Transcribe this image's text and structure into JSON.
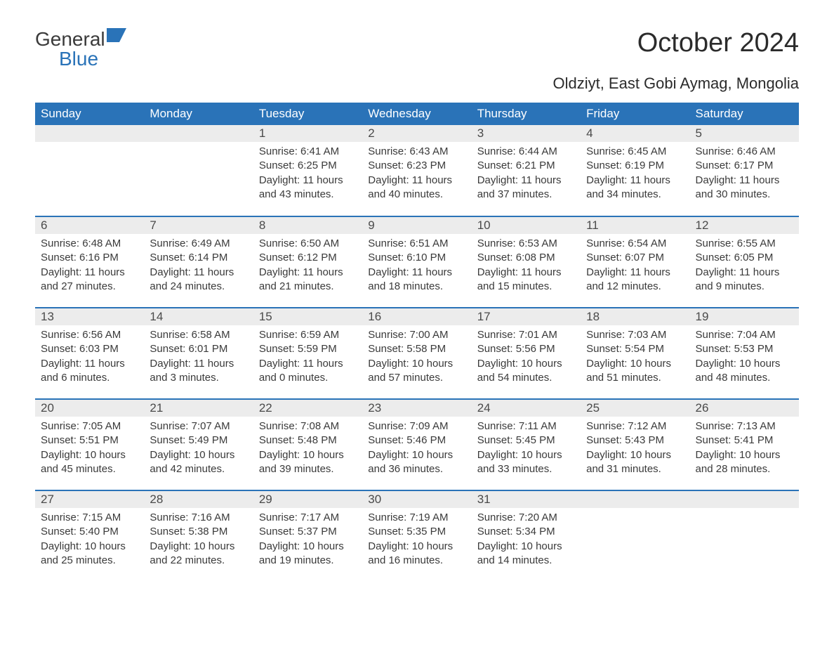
{
  "brand": {
    "part1": "General",
    "part2": "Blue",
    "logo_color": "#2a73b8"
  },
  "title": "October 2024",
  "subtitle": "Oldziyt, East Gobi Aymag, Mongolia",
  "colors": {
    "header_bg": "#2a73b8",
    "header_fg": "#ffffff",
    "daynum_bg": "#ececec",
    "row_border": "#2a73b8",
    "text": "#3a3a3a",
    "background": "#ffffff"
  },
  "day_headers": [
    "Sunday",
    "Monday",
    "Tuesday",
    "Wednesday",
    "Thursday",
    "Friday",
    "Saturday"
  ],
  "weeks": [
    [
      {
        "n": "",
        "sunrise": "",
        "sunset": "",
        "daylight": ""
      },
      {
        "n": "",
        "sunrise": "",
        "sunset": "",
        "daylight": ""
      },
      {
        "n": "1",
        "sunrise": "Sunrise: 6:41 AM",
        "sunset": "Sunset: 6:25 PM",
        "daylight": "Daylight: 11 hours and 43 minutes."
      },
      {
        "n": "2",
        "sunrise": "Sunrise: 6:43 AM",
        "sunset": "Sunset: 6:23 PM",
        "daylight": "Daylight: 11 hours and 40 minutes."
      },
      {
        "n": "3",
        "sunrise": "Sunrise: 6:44 AM",
        "sunset": "Sunset: 6:21 PM",
        "daylight": "Daylight: 11 hours and 37 minutes."
      },
      {
        "n": "4",
        "sunrise": "Sunrise: 6:45 AM",
        "sunset": "Sunset: 6:19 PM",
        "daylight": "Daylight: 11 hours and 34 minutes."
      },
      {
        "n": "5",
        "sunrise": "Sunrise: 6:46 AM",
        "sunset": "Sunset: 6:17 PM",
        "daylight": "Daylight: 11 hours and 30 minutes."
      }
    ],
    [
      {
        "n": "6",
        "sunrise": "Sunrise: 6:48 AM",
        "sunset": "Sunset: 6:16 PM",
        "daylight": "Daylight: 11 hours and 27 minutes."
      },
      {
        "n": "7",
        "sunrise": "Sunrise: 6:49 AM",
        "sunset": "Sunset: 6:14 PM",
        "daylight": "Daylight: 11 hours and 24 minutes."
      },
      {
        "n": "8",
        "sunrise": "Sunrise: 6:50 AM",
        "sunset": "Sunset: 6:12 PM",
        "daylight": "Daylight: 11 hours and 21 minutes."
      },
      {
        "n": "9",
        "sunrise": "Sunrise: 6:51 AM",
        "sunset": "Sunset: 6:10 PM",
        "daylight": "Daylight: 11 hours and 18 minutes."
      },
      {
        "n": "10",
        "sunrise": "Sunrise: 6:53 AM",
        "sunset": "Sunset: 6:08 PM",
        "daylight": "Daylight: 11 hours and 15 minutes."
      },
      {
        "n": "11",
        "sunrise": "Sunrise: 6:54 AM",
        "sunset": "Sunset: 6:07 PM",
        "daylight": "Daylight: 11 hours and 12 minutes."
      },
      {
        "n": "12",
        "sunrise": "Sunrise: 6:55 AM",
        "sunset": "Sunset: 6:05 PM",
        "daylight": "Daylight: 11 hours and 9 minutes."
      }
    ],
    [
      {
        "n": "13",
        "sunrise": "Sunrise: 6:56 AM",
        "sunset": "Sunset: 6:03 PM",
        "daylight": "Daylight: 11 hours and 6 minutes."
      },
      {
        "n": "14",
        "sunrise": "Sunrise: 6:58 AM",
        "sunset": "Sunset: 6:01 PM",
        "daylight": "Daylight: 11 hours and 3 minutes."
      },
      {
        "n": "15",
        "sunrise": "Sunrise: 6:59 AM",
        "sunset": "Sunset: 5:59 PM",
        "daylight": "Daylight: 11 hours and 0 minutes."
      },
      {
        "n": "16",
        "sunrise": "Sunrise: 7:00 AM",
        "sunset": "Sunset: 5:58 PM",
        "daylight": "Daylight: 10 hours and 57 minutes."
      },
      {
        "n": "17",
        "sunrise": "Sunrise: 7:01 AM",
        "sunset": "Sunset: 5:56 PM",
        "daylight": "Daylight: 10 hours and 54 minutes."
      },
      {
        "n": "18",
        "sunrise": "Sunrise: 7:03 AM",
        "sunset": "Sunset: 5:54 PM",
        "daylight": "Daylight: 10 hours and 51 minutes."
      },
      {
        "n": "19",
        "sunrise": "Sunrise: 7:04 AM",
        "sunset": "Sunset: 5:53 PM",
        "daylight": "Daylight: 10 hours and 48 minutes."
      }
    ],
    [
      {
        "n": "20",
        "sunrise": "Sunrise: 7:05 AM",
        "sunset": "Sunset: 5:51 PM",
        "daylight": "Daylight: 10 hours and 45 minutes."
      },
      {
        "n": "21",
        "sunrise": "Sunrise: 7:07 AM",
        "sunset": "Sunset: 5:49 PM",
        "daylight": "Daylight: 10 hours and 42 minutes."
      },
      {
        "n": "22",
        "sunrise": "Sunrise: 7:08 AM",
        "sunset": "Sunset: 5:48 PM",
        "daylight": "Daylight: 10 hours and 39 minutes."
      },
      {
        "n": "23",
        "sunrise": "Sunrise: 7:09 AM",
        "sunset": "Sunset: 5:46 PM",
        "daylight": "Daylight: 10 hours and 36 minutes."
      },
      {
        "n": "24",
        "sunrise": "Sunrise: 7:11 AM",
        "sunset": "Sunset: 5:45 PM",
        "daylight": "Daylight: 10 hours and 33 minutes."
      },
      {
        "n": "25",
        "sunrise": "Sunrise: 7:12 AM",
        "sunset": "Sunset: 5:43 PM",
        "daylight": "Daylight: 10 hours and 31 minutes."
      },
      {
        "n": "26",
        "sunrise": "Sunrise: 7:13 AM",
        "sunset": "Sunset: 5:41 PM",
        "daylight": "Daylight: 10 hours and 28 minutes."
      }
    ],
    [
      {
        "n": "27",
        "sunrise": "Sunrise: 7:15 AM",
        "sunset": "Sunset: 5:40 PM",
        "daylight": "Daylight: 10 hours and 25 minutes."
      },
      {
        "n": "28",
        "sunrise": "Sunrise: 7:16 AM",
        "sunset": "Sunset: 5:38 PM",
        "daylight": "Daylight: 10 hours and 22 minutes."
      },
      {
        "n": "29",
        "sunrise": "Sunrise: 7:17 AM",
        "sunset": "Sunset: 5:37 PM",
        "daylight": "Daylight: 10 hours and 19 minutes."
      },
      {
        "n": "30",
        "sunrise": "Sunrise: 7:19 AM",
        "sunset": "Sunset: 5:35 PM",
        "daylight": "Daylight: 10 hours and 16 minutes."
      },
      {
        "n": "31",
        "sunrise": "Sunrise: 7:20 AM",
        "sunset": "Sunset: 5:34 PM",
        "daylight": "Daylight: 10 hours and 14 minutes."
      },
      {
        "n": "",
        "sunrise": "",
        "sunset": "",
        "daylight": ""
      },
      {
        "n": "",
        "sunrise": "",
        "sunset": "",
        "daylight": ""
      }
    ]
  ]
}
